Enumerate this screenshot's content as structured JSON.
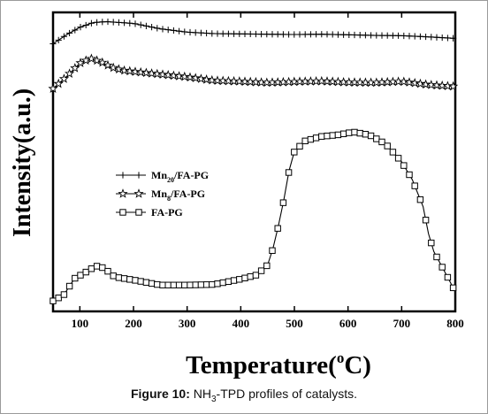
{
  "chart_data": {
    "type": "line",
    "title": "",
    "xlabel": "Temperature(°C)",
    "xlabel_parts": {
      "main": "Temperature(",
      "sup": "o",
      "end": "C)"
    },
    "ylabel": "Intensity(a.u.)",
    "xlim": [
      50,
      800
    ],
    "xticks": [
      100,
      200,
      300,
      400,
      500,
      600,
      700,
      800
    ],
    "y_tick_labels_shown": false,
    "y_units": "a.u. (arbitrary, stacked/offset profiles; 0-100 scale)",
    "ylim": [
      0,
      100
    ],
    "grid": false,
    "legend_position": "center-left",
    "series": [
      {
        "name": "Mn20/FA-PG",
        "legend": {
          "base": "Mn",
          "sub": "20",
          "rest": "/FA-PG"
        },
        "marker": "plus",
        "x": [
          50,
          75,
          100,
          125,
          150,
          175,
          200,
          250,
          300,
          350,
          400,
          450,
          500,
          550,
          600,
          650,
          700,
          750,
          800
        ],
        "y": [
          89.5,
          92.5,
          95.0,
          96.6,
          96.9,
          96.6,
          96.3,
          94.5,
          93.4,
          92.9,
          92.8,
          92.7,
          92.6,
          92.7,
          92.5,
          92.3,
          92.2,
          91.8,
          91.3
        ]
      },
      {
        "name": "Mn8/FA-PG",
        "legend": {
          "base": "Mn",
          "sub": "8",
          "rest": "/FA-PG"
        },
        "marker": "star",
        "x": [
          50,
          75,
          100,
          120,
          140,
          160,
          180,
          200,
          250,
          300,
          350,
          400,
          450,
          500,
          550,
          600,
          650,
          700,
          750,
          800
        ],
        "y": [
          74.5,
          78.5,
          83.0,
          84.6,
          83.4,
          81.6,
          80.6,
          80.2,
          79.3,
          78.4,
          77.2,
          76.9,
          76.5,
          76.8,
          77.0,
          76.6,
          76.5,
          76.9,
          75.8,
          75.2
        ]
      },
      {
        "name": "FA-PG",
        "legend": {
          "base": "FA-PG",
          "sub": "",
          "rest": ""
        },
        "marker": "square",
        "x": [
          50,
          70,
          90,
          110,
          130,
          145,
          165,
          200,
          250,
          300,
          350,
          400,
          430,
          450,
          460,
          470,
          480,
          490,
          500,
          520,
          550,
          580,
          610,
          640,
          670,
          700,
          720,
          740,
          750,
          760,
          775,
          790,
          800
        ],
        "y": [
          3.5,
          5.5,
          11.0,
          13.0,
          15.2,
          14.5,
          11.5,
          10.5,
          8.8,
          8.8,
          9.0,
          10.8,
          12.2,
          15.5,
          21.0,
          28.5,
          37.0,
          47.0,
          53.5,
          57.0,
          58.5,
          59.0,
          60.0,
          59.0,
          56.0,
          50.0,
          44.0,
          35.0,
          26.0,
          20.0,
          15.0,
          10.0,
          6.5
        ]
      }
    ]
  },
  "caption": {
    "label": "Figure 10:",
    "text_pre": " NH",
    "text_sub": "3",
    "text_post": "-TPD profiles of catalysts."
  }
}
